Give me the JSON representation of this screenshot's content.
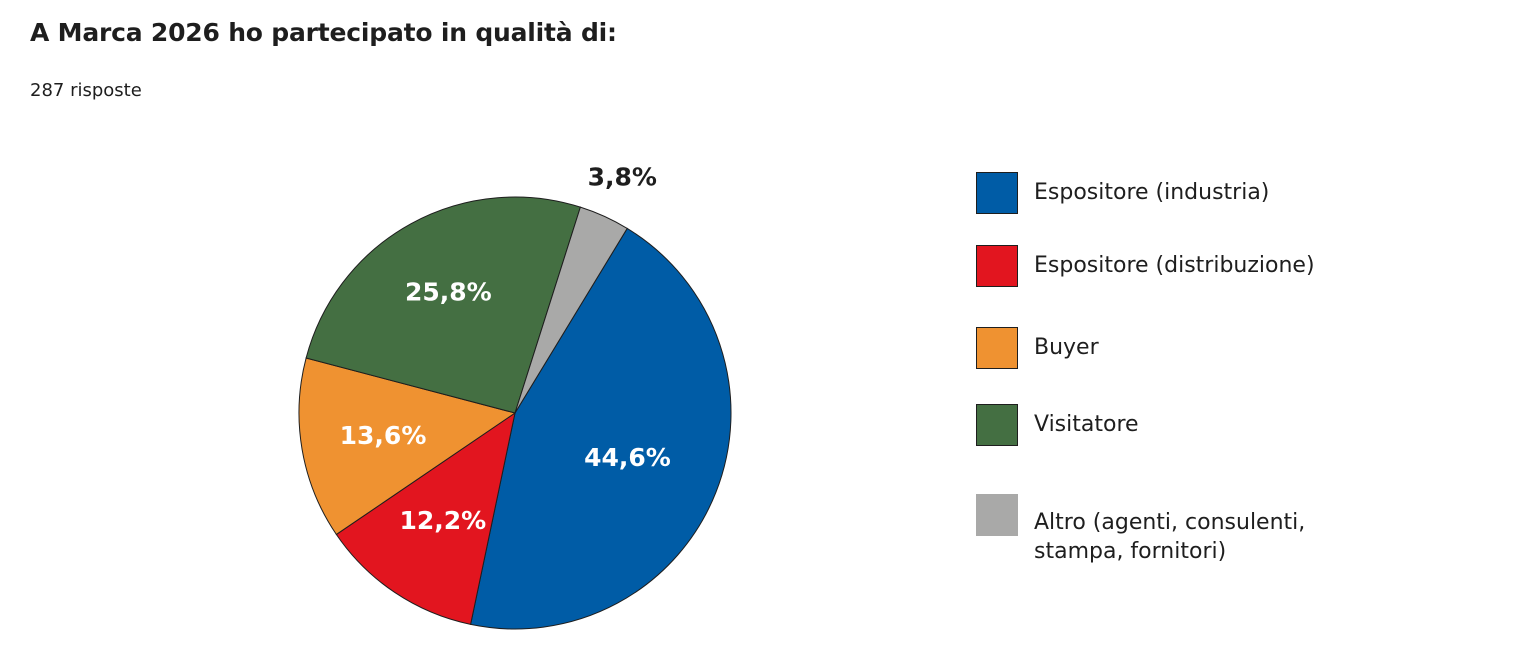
{
  "title": "A Marca 2026 ho partecipato in qualità di:",
  "subtitle": "287 risposte",
  "chart_data": {
    "type": "pie",
    "title": "A Marca 2026 ho partecipato in qualità di:",
    "subtitle": "287 risposte",
    "legend_position": "right",
    "slices": [
      {
        "label": "Espositore (industria)",
        "value": 44.6,
        "display": "44,6%",
        "color": "#005ca6",
        "text_color": "#ffffff"
      },
      {
        "label": "Espositore (distribuzione)",
        "value": 12.2,
        "display": "12,2%",
        "color": "#e2151f",
        "text_color": "#ffffff"
      },
      {
        "label": "Buyer",
        "value": 13.6,
        "display": "13,6%",
        "color": "#ef9231",
        "text_color": "#ffffff"
      },
      {
        "label": "Visitatore",
        "value": 25.8,
        "display": "25,8%",
        "color": "#446f42",
        "text_color": "#ffffff"
      },
      {
        "label": "Altro (agenti, consulenti, stampa, fornitori)",
        "value": 3.8,
        "display": "3,8%",
        "color": "#a9a9a8",
        "text_color": "#1e1e1e"
      }
    ]
  }
}
